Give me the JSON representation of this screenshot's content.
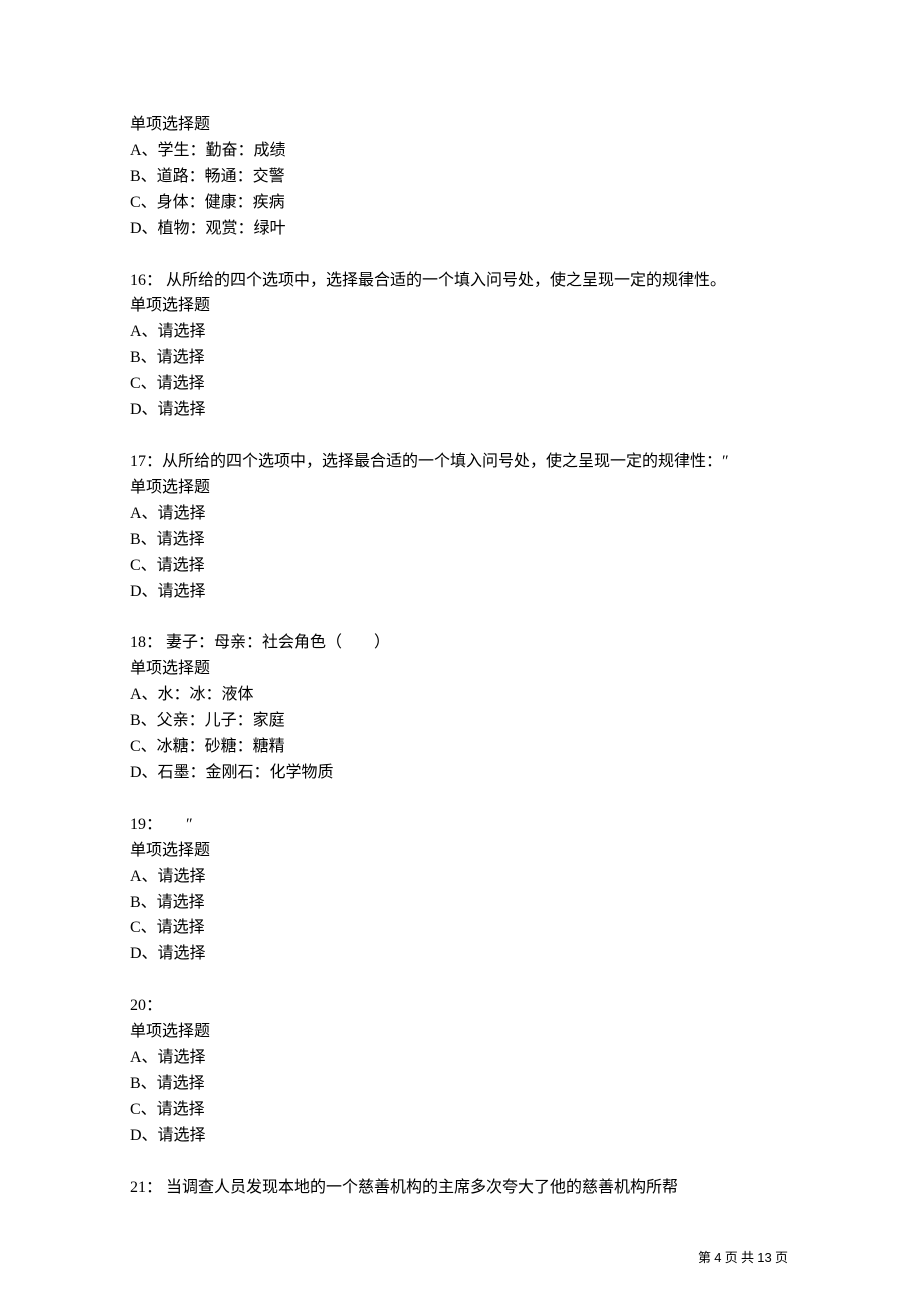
{
  "background_color": "#ffffff",
  "text_color": "#000000",
  "body_fontsize": 16,
  "footer_fontsize": 13,
  "q15": {
    "type_label": "单项选择题",
    "options": {
      "a": "A、学生：勤奋：成绩",
      "b": "B、道路：畅通：交警",
      "c": "C、身体：健康：疾病",
      "d": "D、植物：观赏：绿叶"
    }
  },
  "q16": {
    "stem": "16：  从所给的四个选项中，选择最合适的一个填入问号处，使之呈现一定的规律性。",
    "type_label": "单项选择题",
    "options": {
      "a": "A、请选择",
      "b": "B、请选择",
      "c": "C、请选择",
      "d": "D、请选择"
    }
  },
  "q17": {
    "stem": "17：从所给的四个选项中，选择最合适的一个填入问号处，使之呈现一定的规律性：″",
    "type_label": "单项选择题",
    "options": {
      "a": "A、请选择",
      "b": "B、请选择",
      "c": "C、请选择",
      "d": "D、请选择"
    }
  },
  "q18": {
    "stem": "18：  妻子：母亲：社会角色（　　）",
    "type_label": "单项选择题",
    "options": {
      "a": "A、水：冰：液体",
      "b": "B、父亲：儿子：家庭",
      "c": "C、冰糖：砂糖：糖精",
      "d": "D、石墨：金刚石：化学物质"
    }
  },
  "q19": {
    "stem": "19：　　″",
    "type_label": "单项选择题",
    "options": {
      "a": "A、请选择",
      "b": "B、请选择",
      "c": "C、请选择",
      "d": "D、请选择"
    }
  },
  "q20": {
    "stem": "20：",
    "type_label": "单项选择题",
    "options": {
      "a": "A、请选择",
      "b": "B、请选择",
      "c": "C、请选择",
      "d": "D、请选择"
    }
  },
  "q21": {
    "stem": "21：  当调查人员发现本地的一个慈善机构的主席多次夸大了他的慈善机构所帮"
  },
  "footer": {
    "prefix": "第 ",
    "current": "4",
    "middle": " 页 共 ",
    "total": "13",
    "suffix": " 页"
  }
}
